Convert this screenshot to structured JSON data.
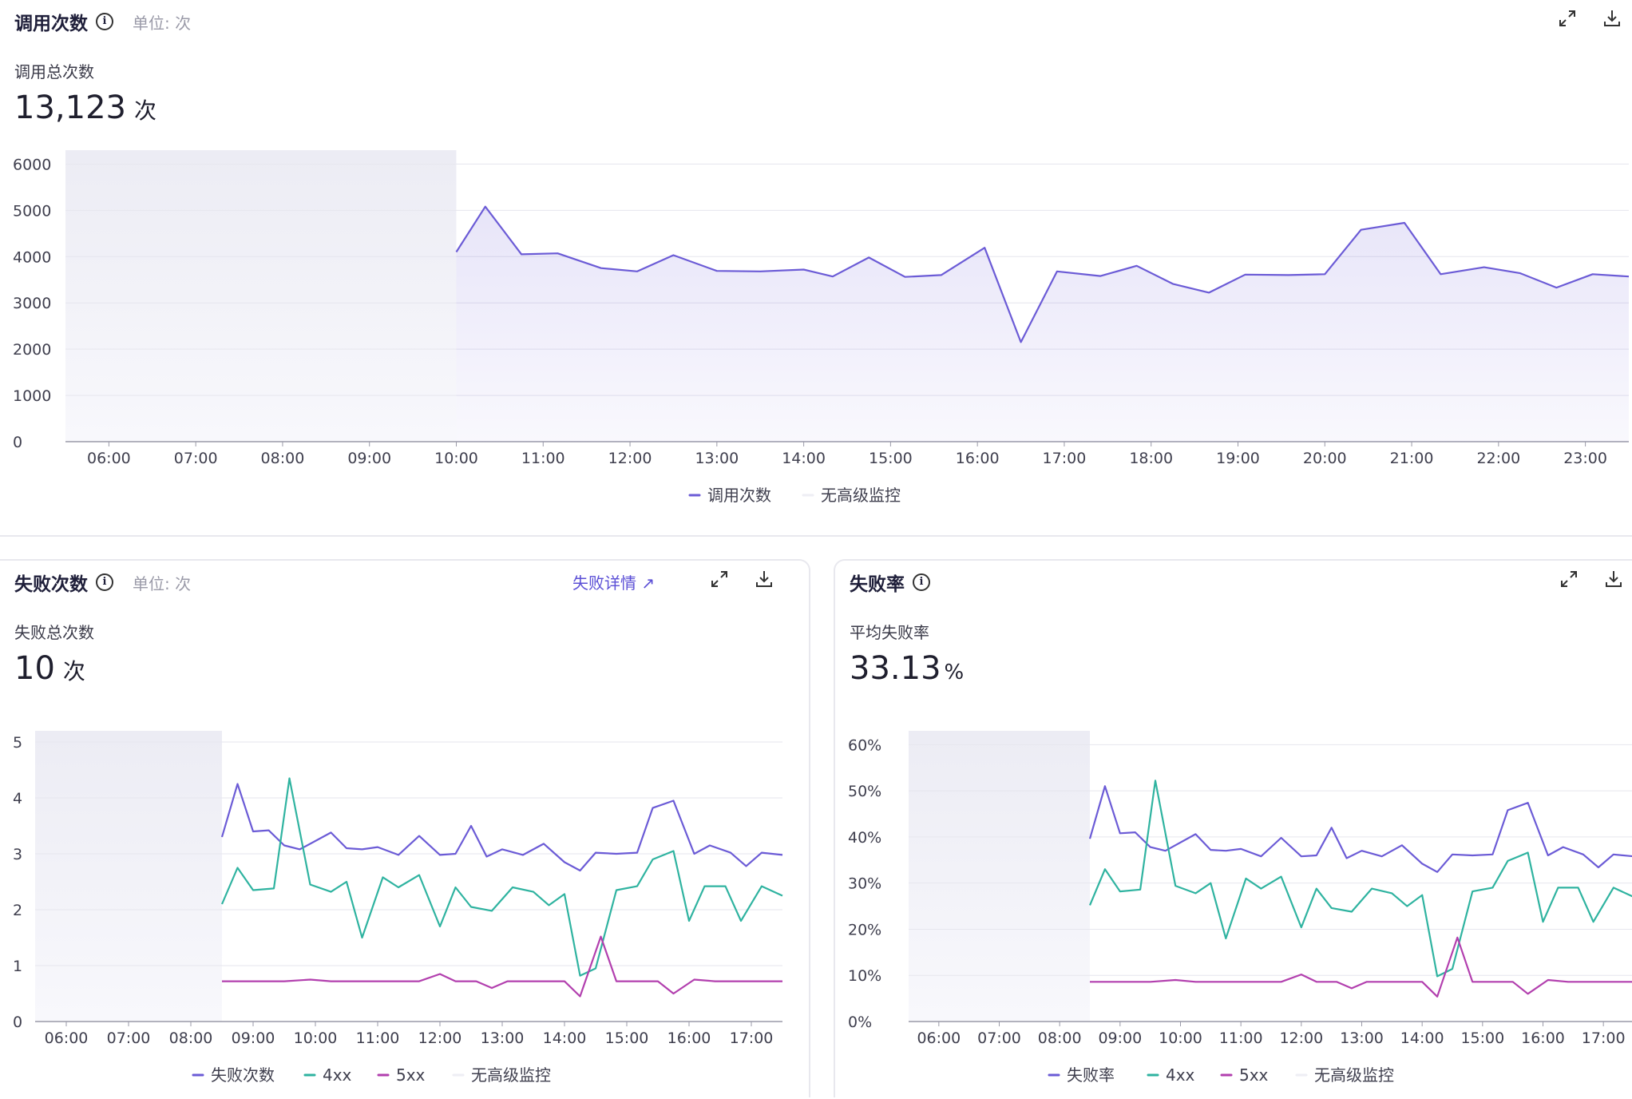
{
  "colors": {
    "purple": "#6b5bd6",
    "teal": "#2fb3a0",
    "magenta": "#b23fae",
    "nodata": "#eeeef4",
    "grid": "#e6e6ee",
    "axis": "#9a9aa8"
  },
  "panels": {
    "top": {
      "title": "调用次数",
      "unit_label": "单位: 次",
      "sub_label": "调用总次数",
      "total_value": "13,123",
      "total_unit": "次"
    },
    "left": {
      "title": "失败次数",
      "unit_label": "单位: 次",
      "link_label": "失败详情",
      "sub_label": "失败总次数",
      "total_value": "10",
      "total_unit": "次"
    },
    "right": {
      "title": "失败率",
      "sub_label": "平均失败率",
      "total_value": "33.13",
      "total_unit": "%"
    }
  },
  "chart_data": [
    {
      "type": "area",
      "x_ticks": [
        "06:00",
        "07:00",
        "08:00",
        "09:00",
        "10:00",
        "11:00",
        "12:00",
        "13:00",
        "14:00",
        "15:00",
        "16:00",
        "17:00",
        "18:00",
        "19:00",
        "20:00",
        "21:00",
        "22:00",
        "23:00"
      ],
      "x_range": [
        "05:30",
        "23:30"
      ],
      "y_ticks": [
        "0",
        "1000",
        "2000",
        "3000",
        "4000",
        "5000",
        "6000"
      ],
      "ylim": [
        0,
        6300
      ],
      "no_data_range": [
        "05:30",
        "10:00"
      ],
      "series": [
        {
          "name": "调用次数",
          "color": "purple",
          "points": [
            [
              "10:00",
              4100
            ],
            [
              "10:20",
              5080
            ],
            [
              "10:45",
              4050
            ],
            [
              "11:10",
              4070
            ],
            [
              "11:40",
              3750
            ],
            [
              "12:05",
              3680
            ],
            [
              "12:30",
              4030
            ],
            [
              "13:00",
              3690
            ],
            [
              "13:30",
              3680
            ],
            [
              "14:00",
              3720
            ],
            [
              "14:20",
              3570
            ],
            [
              "14:45",
              3980
            ],
            [
              "15:10",
              3560
            ],
            [
              "15:35",
              3600
            ],
            [
              "16:05",
              4190
            ],
            [
              "16:30",
              2150
            ],
            [
              "16:55",
              3680
            ],
            [
              "17:25",
              3580
            ],
            [
              "17:50",
              3800
            ],
            [
              "18:15",
              3410
            ],
            [
              "18:40",
              3220
            ],
            [
              "19:05",
              3610
            ],
            [
              "19:35",
              3600
            ],
            [
              "20:00",
              3620
            ],
            [
              "20:25",
              4580
            ],
            [
              "20:55",
              4730
            ],
            [
              "21:20",
              3620
            ],
            [
              "21:50",
              3770
            ],
            [
              "22:15",
              3640
            ],
            [
              "22:40",
              3330
            ],
            [
              "23:05",
              3620
            ],
            [
              "23:30",
              3570
            ]
          ]
        }
      ],
      "legend": [
        {
          "name": "调用次数",
          "color": "purple"
        },
        {
          "name": "无高级监控",
          "color": "nodata"
        }
      ]
    },
    {
      "type": "line",
      "x_ticks": [
        "06:00",
        "07:00",
        "08:00",
        "09:00",
        "10:00",
        "11:00",
        "12:00",
        "13:00",
        "14:00",
        "15:00",
        "16:00",
        "17:00"
      ],
      "x_range": [
        "05:30",
        "17:30"
      ],
      "y_ticks": [
        "0",
        "1",
        "2",
        "3",
        "4",
        "5"
      ],
      "ylim": [
        0,
        5.2
      ],
      "no_data_range": [
        "05:30",
        "08:30"
      ],
      "series": [
        {
          "name": "失败次数",
          "color": "purple",
          "points": [
            [
              "08:30",
              3.3
            ],
            [
              "08:45",
              4.25
            ],
            [
              "09:00",
              3.4
            ],
            [
              "09:15",
              3.42
            ],
            [
              "09:30",
              3.15
            ],
            [
              "09:45",
              3.08
            ],
            [
              "10:15",
              3.38
            ],
            [
              "10:30",
              3.1
            ],
            [
              "10:45",
              3.08
            ],
            [
              "11:00",
              3.12
            ],
            [
              "11:20",
              2.98
            ],
            [
              "11:40",
              3.32
            ],
            [
              "12:00",
              2.98
            ],
            [
              "12:15",
              3.0
            ],
            [
              "12:30",
              3.5
            ],
            [
              "12:45",
              2.95
            ],
            [
              "13:00",
              3.08
            ],
            [
              "13:20",
              2.98
            ],
            [
              "13:40",
              3.18
            ],
            [
              "14:00",
              2.85
            ],
            [
              "14:15",
              2.7
            ],
            [
              "14:30",
              3.02
            ],
            [
              "14:50",
              3.0
            ],
            [
              "15:10",
              3.02
            ],
            [
              "15:25",
              3.82
            ],
            [
              "15:45",
              3.95
            ],
            [
              "16:05",
              3.0
            ],
            [
              "16:20",
              3.15
            ],
            [
              "16:40",
              3.02
            ],
            [
              "16:55",
              2.78
            ],
            [
              "17:10",
              3.02
            ],
            [
              "17:30",
              2.98
            ]
          ]
        },
        {
          "name": "4xx",
          "color": "teal",
          "points": [
            [
              "08:30",
              2.1
            ],
            [
              "08:45",
              2.75
            ],
            [
              "09:00",
              2.35
            ],
            [
              "09:20",
              2.38
            ],
            [
              "09:35",
              4.35
            ],
            [
              "09:55",
              2.45
            ],
            [
              "10:15",
              2.32
            ],
            [
              "10:30",
              2.5
            ],
            [
              "10:45",
              1.5
            ],
            [
              "11:05",
              2.58
            ],
            [
              "11:20",
              2.4
            ],
            [
              "11:40",
              2.62
            ],
            [
              "12:00",
              1.7
            ],
            [
              "12:15",
              2.4
            ],
            [
              "12:30",
              2.05
            ],
            [
              "12:50",
              1.98
            ],
            [
              "13:10",
              2.4
            ],
            [
              "13:30",
              2.32
            ],
            [
              "13:45",
              2.08
            ],
            [
              "14:00",
              2.28
            ],
            [
              "14:15",
              0.82
            ],
            [
              "14:30",
              0.95
            ],
            [
              "14:50",
              2.35
            ],
            [
              "15:10",
              2.42
            ],
            [
              "15:25",
              2.9
            ],
            [
              "15:45",
              3.05
            ],
            [
              "16:00",
              1.8
            ],
            [
              "16:15",
              2.42
            ],
            [
              "16:35",
              2.42
            ],
            [
              "16:50",
              1.8
            ],
            [
              "17:10",
              2.42
            ],
            [
              "17:30",
              2.25
            ]
          ]
        },
        {
          "name": "5xx",
          "color": "magenta",
          "points": [
            [
              "08:30",
              0.72
            ],
            [
              "09:00",
              0.72
            ],
            [
              "09:30",
              0.72
            ],
            [
              "09:55",
              0.75
            ],
            [
              "10:15",
              0.72
            ],
            [
              "11:00",
              0.72
            ],
            [
              "11:40",
              0.72
            ],
            [
              "12:00",
              0.85
            ],
            [
              "12:15",
              0.72
            ],
            [
              "12:35",
              0.72
            ],
            [
              "12:50",
              0.6
            ],
            [
              "13:05",
              0.72
            ],
            [
              "13:45",
              0.72
            ],
            [
              "14:00",
              0.72
            ],
            [
              "14:15",
              0.45
            ],
            [
              "14:35",
              1.52
            ],
            [
              "14:50",
              0.72
            ],
            [
              "15:10",
              0.72
            ],
            [
              "15:30",
              0.72
            ],
            [
              "15:45",
              0.5
            ],
            [
              "16:05",
              0.75
            ],
            [
              "16:25",
              0.72
            ],
            [
              "17:00",
              0.72
            ],
            [
              "17:30",
              0.72
            ]
          ]
        }
      ],
      "legend": [
        {
          "name": "失败次数",
          "color": "purple"
        },
        {
          "name": "4xx",
          "color": "teal"
        },
        {
          "name": "5xx",
          "color": "magenta"
        },
        {
          "name": "无高级监控",
          "color": "nodata"
        }
      ]
    },
    {
      "type": "line",
      "x_ticks": [
        "06:00",
        "07:00",
        "08:00",
        "09:00",
        "10:00",
        "11:00",
        "12:00",
        "13:00",
        "14:00",
        "15:00",
        "16:00",
        "17:00"
      ],
      "x_range": [
        "05:30",
        "17:30"
      ],
      "y_ticks": [
        "0%",
        "10%",
        "20%",
        "30%",
        "40%",
        "50%",
        "60%"
      ],
      "ylim": [
        0,
        63
      ],
      "no_data_range": [
        "05:30",
        "08:30"
      ],
      "series": [
        {
          "name": "失败率",
          "color": "purple",
          "points": [
            [
              "08:30",
              39.6
            ],
            [
              "08:45",
              51
            ],
            [
              "09:00",
              40.8
            ],
            [
              "09:15",
              41
            ],
            [
              "09:30",
              37.8
            ],
            [
              "09:45",
              37
            ],
            [
              "10:15",
              40.6
            ],
            [
              "10:30",
              37.2
            ],
            [
              "10:45",
              37
            ],
            [
              "11:00",
              37.4
            ],
            [
              "11:20",
              35.8
            ],
            [
              "11:40",
              39.8
            ],
            [
              "12:00",
              35.8
            ],
            [
              "12:15",
              36
            ],
            [
              "12:30",
              42
            ],
            [
              "12:45",
              35.4
            ],
            [
              "13:00",
              37
            ],
            [
              "13:20",
              35.8
            ],
            [
              "13:40",
              38.2
            ],
            [
              "14:00",
              34.2
            ],
            [
              "14:15",
              32.4
            ],
            [
              "14:30",
              36.2
            ],
            [
              "14:50",
              36
            ],
            [
              "15:10",
              36.2
            ],
            [
              "15:25",
              45.8
            ],
            [
              "15:45",
              47.4
            ],
            [
              "16:05",
              36
            ],
            [
              "16:20",
              37.8
            ],
            [
              "16:40",
              36.2
            ],
            [
              "16:55",
              33.4
            ],
            [
              "17:10",
              36.2
            ],
            [
              "17:30",
              35.8
            ]
          ]
        },
        {
          "name": "4xx",
          "color": "teal",
          "points": [
            [
              "08:30",
              25.2
            ],
            [
              "08:45",
              33
            ],
            [
              "09:00",
              28.2
            ],
            [
              "09:20",
              28.6
            ],
            [
              "09:35",
              52.2
            ],
            [
              "09:55",
              29.4
            ],
            [
              "10:15",
              27.8
            ],
            [
              "10:30",
              30
            ],
            [
              "10:45",
              18
            ],
            [
              "11:05",
              31
            ],
            [
              "11:20",
              28.8
            ],
            [
              "11:40",
              31.4
            ],
            [
              "12:00",
              20.4
            ],
            [
              "12:15",
              28.8
            ],
            [
              "12:30",
              24.6
            ],
            [
              "12:50",
              23.8
            ],
            [
              "13:10",
              28.8
            ],
            [
              "13:30",
              27.8
            ],
            [
              "13:45",
              25
            ],
            [
              "14:00",
              27.4
            ],
            [
              "14:15",
              9.8
            ],
            [
              "14:30",
              11.4
            ],
            [
              "14:50",
              28.2
            ],
            [
              "15:10",
              29
            ],
            [
              "15:25",
              34.8
            ],
            [
              "15:45",
              36.6
            ],
            [
              "16:00",
              21.6
            ],
            [
              "16:15",
              29
            ],
            [
              "16:35",
              29
            ],
            [
              "16:50",
              21.6
            ],
            [
              "17:10",
              29
            ],
            [
              "17:30",
              27
            ]
          ]
        },
        {
          "name": "5xx",
          "color": "magenta",
          "points": [
            [
              "08:30",
              8.6
            ],
            [
              "09:00",
              8.6
            ],
            [
              "09:30",
              8.6
            ],
            [
              "09:55",
              9
            ],
            [
              "10:15",
              8.6
            ],
            [
              "11:00",
              8.6
            ],
            [
              "11:40",
              8.6
            ],
            [
              "12:00",
              10.2
            ],
            [
              "12:15",
              8.6
            ],
            [
              "12:35",
              8.6
            ],
            [
              "12:50",
              7.2
            ],
            [
              "13:05",
              8.6
            ],
            [
              "13:45",
              8.6
            ],
            [
              "14:00",
              8.6
            ],
            [
              "14:15",
              5.4
            ],
            [
              "14:35",
              18.2
            ],
            [
              "14:50",
              8.6
            ],
            [
              "15:10",
              8.6
            ],
            [
              "15:30",
              8.6
            ],
            [
              "15:45",
              6
            ],
            [
              "16:05",
              9
            ],
            [
              "16:25",
              8.6
            ],
            [
              "17:00",
              8.6
            ],
            [
              "17:30",
              8.6
            ]
          ]
        }
      ],
      "legend": [
        {
          "name": "失败率",
          "color": "purple"
        },
        {
          "name": "4xx",
          "color": "teal"
        },
        {
          "name": "5xx",
          "color": "magenta"
        },
        {
          "name": "无高级监控",
          "color": "nodata"
        }
      ]
    }
  ]
}
